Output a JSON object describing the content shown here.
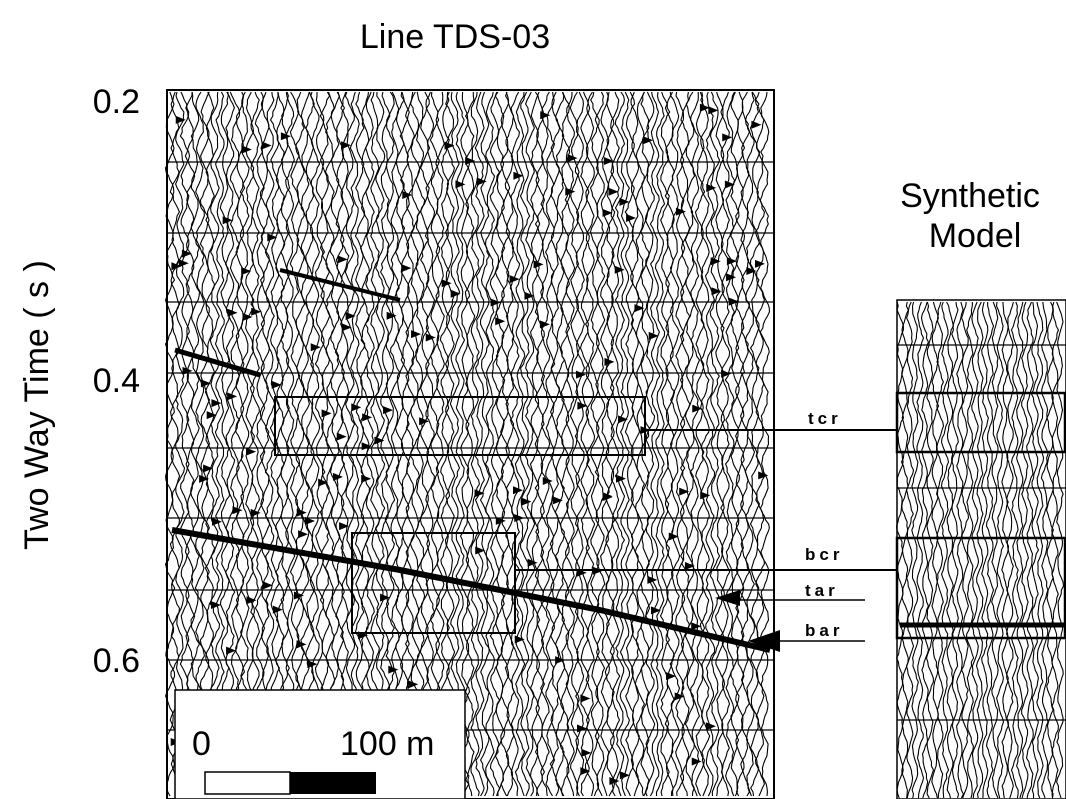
{
  "title": "Line TDS-03",
  "synthetic_title": [
    "Synthetic",
    "Model"
  ],
  "axis": {
    "label": "Two Way Time ( s )",
    "ticks": [
      "0.2",
      "0.4",
      "0.6"
    ]
  },
  "horizons": [
    "tcr",
    "bcr",
    "tar",
    "bar"
  ],
  "scale_bar": {
    "start": "0",
    "end": "100 m"
  }
}
